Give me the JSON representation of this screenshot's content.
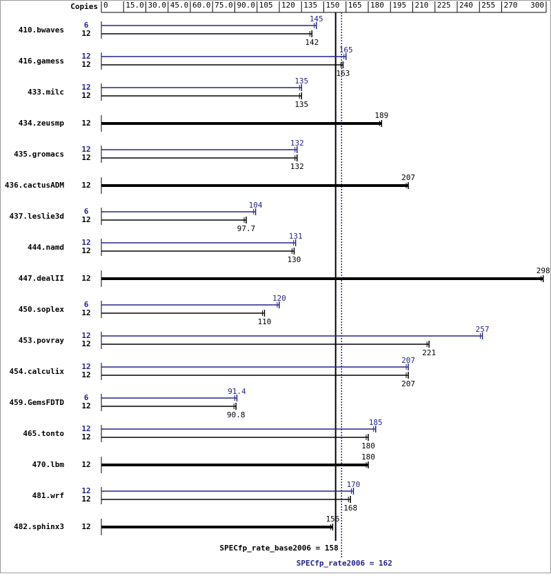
{
  "chart_data": {
    "type": "spec-bar",
    "axis_label": "Copies",
    "xlim": [
      0,
      300
    ],
    "xticks": [
      0,
      {
        "value": 15,
        "label": "15.0"
      },
      {
        "value": 30,
        "label": "30.0"
      },
      {
        "value": 45,
        "label": "45.0"
      },
      {
        "value": 60,
        "label": "60.0"
      },
      {
        "value": 75,
        "label": "75.0"
      },
      {
        "value": 90,
        "label": "90.0"
      },
      105,
      120,
      135,
      150,
      165,
      180,
      195,
      210,
      225,
      240,
      255,
      270,
      300
    ],
    "categories": [
      "410.bwaves",
      "416.gamess",
      "433.milc",
      "434.zeusmp",
      "435.gromacs",
      "436.cactusADM",
      "437.leslie3d",
      "444.namd",
      "447.dealII",
      "450.soplex",
      "453.povray",
      "454.calculix",
      "459.GemsFDTD",
      "465.tonto",
      "470.lbm",
      "481.wrf",
      "482.sphinx3"
    ],
    "base_color": "#000000",
    "peak_color": "#22228c",
    "base_copies": [
      12,
      12,
      12,
      12,
      12,
      12,
      12,
      12,
      12,
      12,
      12,
      12,
      12,
      12,
      12,
      12,
      12
    ],
    "base_values": [
      142,
      163,
      135,
      189,
      132,
      207,
      97.7,
      130,
      298,
      110,
      221,
      207,
      90.8,
      180,
      180,
      168,
      156
    ],
    "peak_copies": [
      6,
      12,
      12,
      null,
      12,
      null,
      6,
      12,
      null,
      6,
      12,
      12,
      6,
      12,
      null,
      12,
      null
    ],
    "peak_values": [
      145,
      165,
      135,
      null,
      132,
      null,
      104,
      131,
      null,
      120,
      257,
      207,
      91.4,
      185,
      null,
      170,
      null
    ],
    "base_ref": {
      "label": "SPECfp_rate_base2006 = 158",
      "value": 158
    },
    "peak_ref": {
      "label": "SPECfp_rate2006 = 162",
      "value": 162
    }
  }
}
